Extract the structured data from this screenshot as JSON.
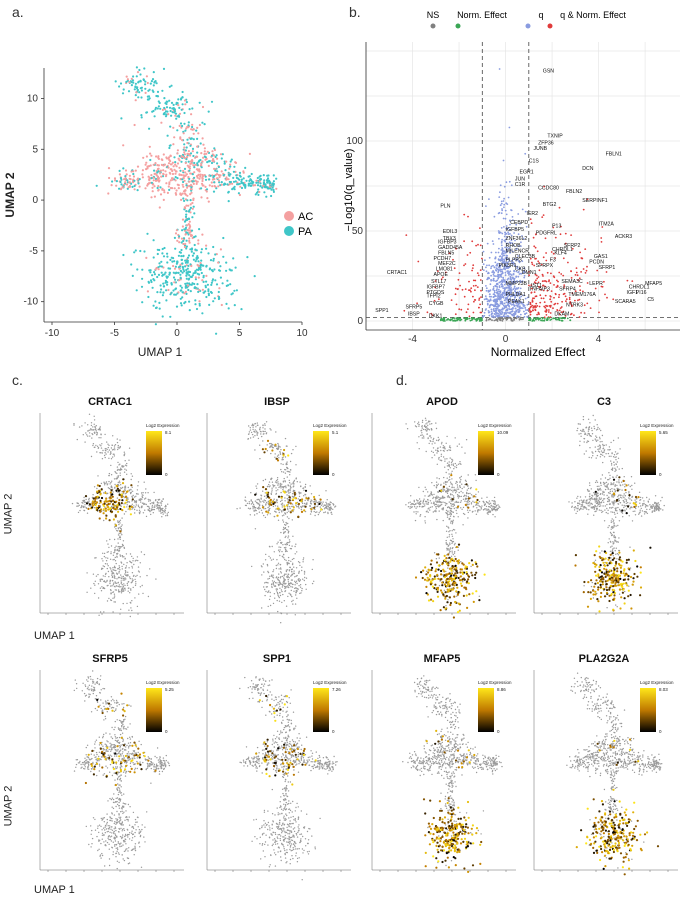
{
  "panel_labels": {
    "a": "a.",
    "b": "b.",
    "c": "c.",
    "d": "d."
  },
  "colors": {
    "ac": "#f4a0a0",
    "pa": "#3fc6c8",
    "ns": "#808080",
    "norm_effect": "#3aa655",
    "q": "#8a9ce0",
    "q_norm": "#e03b3b",
    "expr_low": "#000000",
    "expr_mid": "#c07a00",
    "expr_high": "#ffe81a",
    "bg_point": "#9a9a9a"
  },
  "umap": {
    "x_label": "UMAP 1",
    "y_label": "UMAP 2",
    "legend": [
      {
        "key": "ac",
        "label": "AC"
      },
      {
        "key": "pa",
        "label": "PA"
      }
    ]
  },
  "chart_data": [
    {
      "type": "scatter",
      "id": "umap-condition",
      "xlabel": "UMAP 1",
      "ylabel": "UMAP 2",
      "xlim": [
        -10,
        10
      ],
      "ylim": [
        -12,
        13
      ],
      "x_ticks": [
        -10,
        -5,
        0,
        5,
        10
      ],
      "y_ticks": [
        -10,
        -5,
        0,
        5,
        10
      ],
      "series": [
        {
          "name": "AC"
        },
        {
          "name": "PA"
        }
      ]
    },
    {
      "type": "scatter",
      "id": "volcano",
      "xlabel": "Normalized Effect",
      "ylabel": "−Log10(q_value)",
      "xlim": [
        -6,
        7.5
      ],
      "ylim": [
        -5,
        155
      ],
      "x_ticks": [
        -4,
        0,
        4
      ],
      "y_ticks": [
        0,
        50,
        100
      ],
      "thresholds": {
        "x": [
          -1,
          1
        ],
        "y": 2
      },
      "legend": [
        {
          "key": "ns",
          "label": "NS"
        },
        {
          "key": "norm_effect",
          "label": "Norm. Effect"
        },
        {
          "key": "q",
          "label": "q"
        },
        {
          "key": "q_norm",
          "label": "q & Norm. Effect"
        }
      ],
      "labels": [
        {
          "g": "GSN",
          "x": 1.6,
          "y": 138
        },
        {
          "g": "TXNIP",
          "x": 1.8,
          "y": 102
        },
        {
          "g": "ZFP36",
          "x": 1.4,
          "y": 98
        },
        {
          "g": "JUNB",
          "x": 1.2,
          "y": 95
        },
        {
          "g": "FBLN1",
          "x": 4.3,
          "y": 92
        },
        {
          "g": "C1S",
          "x": 1.0,
          "y": 88
        },
        {
          "g": "DCN",
          "x": 3.3,
          "y": 84
        },
        {
          "g": "EGR1",
          "x": 0.6,
          "y": 82
        },
        {
          "g": "JUN",
          "x": 0.4,
          "y": 78
        },
        {
          "g": "C1R",
          "x": 0.4,
          "y": 75
        },
        {
          "g": "CCDC80",
          "x": 1.4,
          "y": 73
        },
        {
          "g": "FBLN2",
          "x": 2.6,
          "y": 71
        },
        {
          "g": "SERPINF1",
          "x": 3.3,
          "y": 66
        },
        {
          "g": "BTG2",
          "x": 1.6,
          "y": 64
        },
        {
          "g": "PLN",
          "x": -2.8,
          "y": 63
        },
        {
          "g": "IER2",
          "x": 0.9,
          "y": 59
        },
        {
          "g": "CEBPD",
          "x": 0.2,
          "y": 54
        },
        {
          "g": "ITM2A",
          "x": 4.0,
          "y": 53
        },
        {
          "g": "P13",
          "x": 2.0,
          "y": 52
        },
        {
          "g": "IGFBP5",
          "x": 0.0,
          "y": 50
        },
        {
          "g": "EDIL3",
          "x": -2.7,
          "y": 49
        },
        {
          "g": "PDGFRL",
          "x": 1.3,
          "y": 48
        },
        {
          "g": "ACKR3",
          "x": 4.7,
          "y": 46
        },
        {
          "g": "TBX3",
          "x": -2.7,
          "y": 45
        },
        {
          "g": "IGFBP3",
          "x": -2.9,
          "y": 43
        },
        {
          "g": "ZNF36L2",
          "x": 0.0,
          "y": 45
        },
        {
          "g": "SFRP2",
          "x": 2.5,
          "y": 41
        },
        {
          "g": "GADD45A",
          "x": -2.9,
          "y": 40
        },
        {
          "g": "RHOB",
          "x": 0.0,
          "y": 41
        },
        {
          "g": "CHRDL1",
          "x": 2.0,
          "y": 39
        },
        {
          "g": "FBLN5",
          "x": -2.9,
          "y": 37
        },
        {
          "g": "MILENCR",
          "x": 0.0,
          "y": 38
        },
        {
          "g": "KLF4",
          "x": 2.1,
          "y": 37
        },
        {
          "g": "GAS1",
          "x": 3.8,
          "y": 35
        },
        {
          "g": "CLEC3B",
          "x": 0.4,
          "y": 35
        },
        {
          "g": "PCDH7",
          "x": -3.1,
          "y": 34
        },
        {
          "g": "PLPP3",
          "x": 0.0,
          "y": 33
        },
        {
          "g": "F3",
          "x": 1.9,
          "y": 33
        },
        {
          "g": "PCDN",
          "x": 3.6,
          "y": 32
        },
        {
          "g": "MEF2C",
          "x": -2.9,
          "y": 31
        },
        {
          "g": "PIK3R1",
          "x": -0.3,
          "y": 30
        },
        {
          "g": "SFRPX",
          "x": 1.3,
          "y": 30
        },
        {
          "g": "SFRP1",
          "x": 4.0,
          "y": 29
        },
        {
          "g": "LMO81",
          "x": -3.0,
          "y": 28
        },
        {
          "g": "CKB",
          "x": 0.4,
          "y": 28
        },
        {
          "g": "DMN1",
          "x": 0.7,
          "y": 26
        },
        {
          "g": "CRTAC1",
          "x": -5.1,
          "y": 26
        },
        {
          "g": "APOE",
          "x": -3.1,
          "y": 25
        },
        {
          "g": "STLL7",
          "x": -3.2,
          "y": 21
        },
        {
          "g": "SEMA3C",
          "x": 2.4,
          "y": 21
        },
        {
          "g": "LEPR",
          "x": 3.6,
          "y": 20
        },
        {
          "g": "MFAP5",
          "x": 6.0,
          "y": 20
        },
        {
          "g": "MMP23B",
          "x": 0.0,
          "y": 20
        },
        {
          "g": "IST1",
          "x": 1.1,
          "y": 19
        },
        {
          "g": "IGFBP7",
          "x": -3.4,
          "y": 18
        },
        {
          "g": "CHRDL1",
          "x": 5.3,
          "y": 18
        },
        {
          "g": "TNFAIP3",
          "x": 1.0,
          "y": 17
        },
        {
          "g": "SFRP4",
          "x": 2.3,
          "y": 17
        },
        {
          "g": "PTGDS",
          "x": -3.4,
          "y": 15
        },
        {
          "g": "IGF1",
          "x": 5.2,
          "y": 15
        },
        {
          "g": "PI16",
          "x": 5.6,
          "y": 15
        },
        {
          "g": "TMEM176A",
          "x": 2.7,
          "y": 14
        },
        {
          "g": "TFPI2",
          "x": -3.4,
          "y": 13
        },
        {
          "g": "PHLDA1",
          "x": 0.0,
          "y": 14
        },
        {
          "g": "C5",
          "x": 6.1,
          "y": 11
        },
        {
          "g": "SCARA5",
          "x": 4.7,
          "y": 10
        },
        {
          "g": "NTRK3",
          "x": 2.6,
          "y": 8
        },
        {
          "g": "CYGB",
          "x": -3.3,
          "y": 9
        },
        {
          "g": "PEAK1",
          "x": 0.1,
          "y": 10
        },
        {
          "g": "SPP1",
          "x": -5.6,
          "y": 5
        },
        {
          "g": "SFRP5",
          "x": -4.3,
          "y": 7
        },
        {
          "g": "IBSP",
          "x": -4.2,
          "y": 3
        },
        {
          "g": "DKK1",
          "x": -3.3,
          "y": 2
        },
        {
          "g": "DKAM",
          "x": 2.1,
          "y": 3
        }
      ]
    },
    {
      "type": "scatter",
      "id": "feature-plots",
      "scale_title": "Log2 Expression",
      "xlabel": "UMAP 1",
      "ylabel": "UMAP 2",
      "panels": [
        {
          "gene": "CRTAC1",
          "max": "8.1",
          "cluster": "mid"
        },
        {
          "gene": "IBSP",
          "max": "5.1",
          "cluster": "mid-sparse"
        },
        {
          "gene": "APOD",
          "max": "10.09",
          "cluster": "bottom"
        },
        {
          "gene": "C3",
          "max": "5.65",
          "cluster": "bottom"
        },
        {
          "gene": "SFRP5",
          "max": "5.25",
          "cluster": "mid-sparse"
        },
        {
          "gene": "SPP1",
          "max": "7.26",
          "cluster": "mid-sparse"
        },
        {
          "gene": "MFAP5",
          "max": "8.86",
          "cluster": "bottom"
        },
        {
          "gene": "PLA2G2A",
          "max": "8.03",
          "cluster": "bottom"
        }
      ]
    }
  ]
}
